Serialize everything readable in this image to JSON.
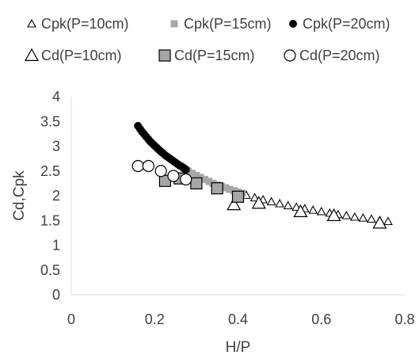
{
  "chart_data": {
    "type": "scatter",
    "title": "",
    "xlabel": "H/P",
    "ylabel": "Cd,Cpk",
    "xlim": [
      0,
      0.8
    ],
    "ylim": [
      0,
      4
    ],
    "x_ticks": [
      0,
      0.2,
      0.4,
      0.6,
      0.8
    ],
    "y_ticks": [
      0,
      0.5,
      1,
      1.5,
      2,
      2.5,
      3,
      3.5,
      4
    ],
    "x_tick_labels": [
      "0",
      "0.2",
      "0.4",
      "0.6",
      "0.8"
    ],
    "y_tick_labels": [
      "0",
      "0.5",
      "1",
      "1.5",
      "2",
      "2.5",
      "3",
      "3.5",
      "4"
    ],
    "grid": false,
    "legend_position": "top",
    "series": [
      {
        "name": "Cpk(P=10cm)",
        "marker": "triangle-small",
        "fill": "#ffffff",
        "stroke": "#000000",
        "x": [
          0.4,
          0.42,
          0.44,
          0.46,
          0.48,
          0.5,
          0.52,
          0.54,
          0.56,
          0.58,
          0.6,
          0.62,
          0.64,
          0.66,
          0.68,
          0.7,
          0.72,
          0.74,
          0.76
        ],
        "y": [
          2.06,
          2.01,
          1.96,
          1.92,
          1.88,
          1.84,
          1.8,
          1.77,
          1.74,
          1.71,
          1.68,
          1.65,
          1.62,
          1.6,
          1.57,
          1.55,
          1.53,
          1.5,
          1.48
        ]
      },
      {
        "name": "Cpk(P=15cm)",
        "marker": "square-small",
        "fill": "#a6a6a6",
        "stroke": "#a6a6a6",
        "x": [
          0.27,
          0.28,
          0.29,
          0.3,
          0.31,
          0.32,
          0.33,
          0.34,
          0.35,
          0.36,
          0.37,
          0.38,
          0.39,
          0.4,
          0.41
        ],
        "y": [
          2.55,
          2.5,
          2.45,
          2.41,
          2.37,
          2.33,
          2.29,
          2.25,
          2.22,
          2.19,
          2.16,
          2.13,
          2.1,
          2.07,
          2.05
        ]
      },
      {
        "name": "Cpk(P=20cm)",
        "marker": "circle-small",
        "fill": "#000000",
        "stroke": "#000000",
        "x": [
          0.16,
          0.165,
          0.17,
          0.175,
          0.18,
          0.185,
          0.19,
          0.195,
          0.2,
          0.205,
          0.21,
          0.215,
          0.22,
          0.225,
          0.23,
          0.235,
          0.24,
          0.245,
          0.25,
          0.255,
          0.26,
          0.265,
          0.27,
          0.275
        ],
        "y": [
          3.41,
          3.35,
          3.29,
          3.24,
          3.19,
          3.14,
          3.09,
          3.05,
          3.01,
          2.97,
          2.93,
          2.89,
          2.86,
          2.82,
          2.79,
          2.76,
          2.73,
          2.7,
          2.67,
          2.64,
          2.61,
          2.59,
          2.56,
          2.53
        ]
      },
      {
        "name": "Cd(P=10cm)",
        "marker": "triangle",
        "fill": "#ffffff",
        "stroke": "#000000",
        "x": [
          0.39,
          0.45,
          0.55,
          0.63,
          0.74
        ],
        "y": [
          1.82,
          1.85,
          1.68,
          1.6,
          1.45
        ]
      },
      {
        "name": "Cd(P=15cm)",
        "marker": "square",
        "fill": "#a6a6a6",
        "stroke": "#000000",
        "x": [
          0.225,
          0.26,
          0.3,
          0.35,
          0.4
        ],
        "y": [
          2.3,
          2.35,
          2.25,
          2.15,
          1.98
        ]
      },
      {
        "name": "Cd(P=20cm)",
        "marker": "circle",
        "fill": "#ffffff",
        "stroke": "#000000",
        "x": [
          0.16,
          0.185,
          0.215,
          0.245,
          0.275
        ],
        "y": [
          2.6,
          2.6,
          2.5,
          2.4,
          2.33
        ]
      }
    ]
  }
}
